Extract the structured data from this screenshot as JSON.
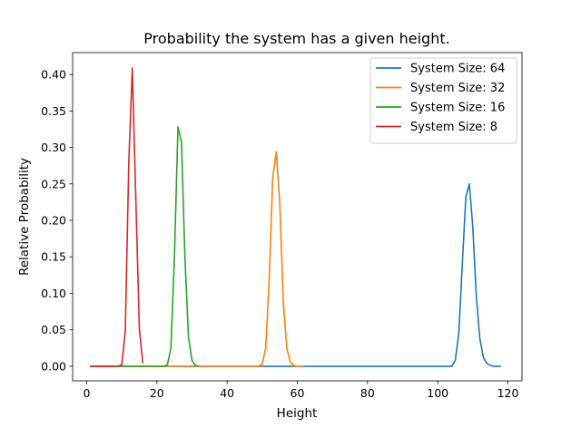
{
  "chart_data": {
    "type": "line",
    "title": "Probability the system has a given height.",
    "xlabel": "Height",
    "ylabel": "Relative Probability",
    "xlim": [
      -4,
      124
    ],
    "ylim": [
      -0.02,
      0.43
    ],
    "xticks": [
      0,
      20,
      40,
      60,
      80,
      100,
      120
    ],
    "xtick_labels": [
      "0",
      "20",
      "40",
      "60",
      "80",
      "100",
      "120"
    ],
    "yticks": [
      0.0,
      0.05,
      0.1,
      0.15,
      0.2,
      0.25,
      0.3,
      0.35,
      0.4
    ],
    "ytick_labels": [
      "0.00",
      "0.05",
      "0.10",
      "0.15",
      "0.20",
      "0.25",
      "0.30",
      "0.35",
      "0.40"
    ],
    "grid": false,
    "legend_position": "top-right",
    "series": [
      {
        "name": "System Size: 64",
        "color": "#1f77b4",
        "x": [
          1,
          20,
          40,
          60,
          80,
          100,
          104,
          105,
          106,
          107,
          108,
          109,
          110,
          111,
          112,
          113,
          114,
          115,
          116,
          117,
          118
        ],
        "y": [
          0,
          0,
          0,
          0,
          0,
          0,
          0,
          0.008,
          0.045,
          0.14,
          0.232,
          0.25,
          0.19,
          0.095,
          0.038,
          0.012,
          0.004,
          0.001,
          0,
          0,
          0
        ]
      },
      {
        "name": "System Size: 32",
        "color": "#ff7f0e",
        "x": [
          1,
          20,
          40,
          49,
          50,
          51,
          52,
          53,
          54,
          55,
          56,
          57,
          58,
          59,
          60,
          62
        ],
        "y": [
          0,
          0,
          0,
          0,
          0.003,
          0.025,
          0.12,
          0.258,
          0.294,
          0.225,
          0.088,
          0.025,
          0.006,
          0.001,
          0,
          0
        ]
      },
      {
        "name": "System Size: 16",
        "color": "#2ca02c",
        "x": [
          1,
          10,
          20,
          22,
          23,
          24,
          25,
          26,
          27,
          28,
          29,
          30,
          31,
          32
        ],
        "y": [
          0,
          0,
          0,
          0,
          0.002,
          0.025,
          0.15,
          0.328,
          0.308,
          0.148,
          0.04,
          0.008,
          0.001,
          0
        ]
      },
      {
        "name": "System Size: 8",
        "color": "#d62728",
        "x": [
          1,
          5,
          9,
          10,
          11,
          12,
          13,
          14,
          15,
          16
        ],
        "y": [
          0,
          0,
          0,
          0.002,
          0.048,
          0.28,
          0.409,
          0.23,
          0.052,
          0.004
        ]
      }
    ]
  }
}
